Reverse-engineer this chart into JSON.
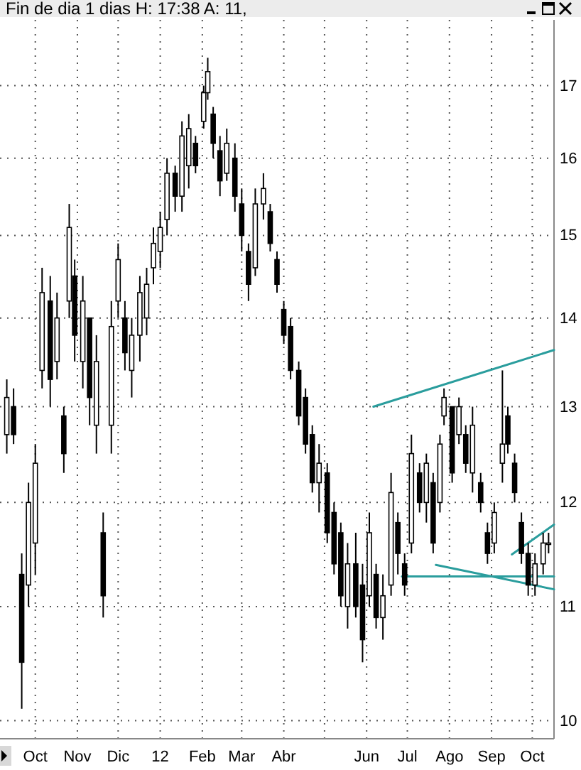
{
  "chart_data": {
    "type": "candlestick",
    "title": "Fin de dia 1 dias H: 17:38 A: 11,",
    "x": [
      "2011-09-10",
      "2011-09-15",
      "2011-09-21",
      "2011-09-26",
      "2011-10-01",
      "2011-10-06",
      "2011-10-12",
      "2011-10-17",
      "2011-10-22",
      "2011-10-26",
      "2011-10-30",
      "2011-11-05",
      "2011-11-10",
      "2011-11-15",
      "2011-11-20",
      "2011-11-26",
      "2011-12-01",
      "2011-12-06",
      "2011-12-11",
      "2011-12-17",
      "2011-12-22",
      "2011-12-27",
      "2012-01-01",
      "2012-01-06",
      "2012-01-12",
      "2012-01-17",
      "2012-01-22",
      "2012-01-27",
      "2012-02-02",
      "2012-02-05",
      "2012-02-09",
      "2012-02-14",
      "2012-02-19",
      "2012-02-25",
      "2012-03-01",
      "2012-03-06",
      "2012-03-11",
      "2012-03-17",
      "2012-03-22",
      "2012-03-27",
      "2012-04-01",
      "2012-04-06",
      "2012-04-12",
      "2012-04-17",
      "2012-04-22",
      "2012-04-27",
      "2012-05-03",
      "2012-05-08",
      "2012-05-13",
      "2012-05-18",
      "2012-05-24",
      "2012-05-29",
      "2012-06-03",
      "2012-06-08",
      "2012-06-13",
      "2012-06-19",
      "2012-06-24",
      "2012-06-29",
      "2012-07-04",
      "2012-07-10",
      "2012-07-15",
      "2012-07-20",
      "2012-07-25",
      "2012-07-28",
      "2012-08-03",
      "2012-08-08",
      "2012-08-13",
      "2012-08-18",
      "2012-08-24",
      "2012-08-29",
      "2012-09-03",
      "2012-09-09",
      "2012-09-13",
      "2012-09-18",
      "2012-09-23",
      "2012-09-28",
      "2012-10-03",
      "2012-10-09",
      "2012-10-13"
    ],
    "ohlc": [
      [
        12.7,
        13.3,
        12.5,
        13.1
      ],
      [
        13.0,
        13.2,
        12.6,
        12.7
      ],
      [
        11.3,
        11.5,
        10.1,
        10.5
      ],
      [
        11.2,
        12.2,
        11.0,
        12.0
      ],
      [
        11.6,
        12.6,
        11.3,
        12.4
      ],
      [
        13.4,
        14.6,
        13.2,
        14.3
      ],
      [
        14.2,
        14.5,
        13.0,
        13.3
      ],
      [
        13.5,
        14.3,
        13.3,
        14.0
      ],
      [
        12.9,
        13.0,
        12.3,
        12.5
      ],
      [
        14.2,
        15.4,
        14.0,
        15.1
      ],
      [
        14.5,
        14.7,
        13.5,
        13.8
      ],
      [
        13.5,
        14.5,
        13.2,
        14.2
      ],
      [
        14.0,
        14.0,
        12.8,
        13.1
      ],
      [
        12.8,
        13.8,
        12.5,
        13.5
      ],
      [
        11.7,
        11.9,
        10.9,
        11.1
      ],
      [
        12.8,
        14.2,
        12.5,
        13.9
      ],
      [
        14.2,
        14.9,
        14.0,
        14.7
      ],
      [
        14.0,
        14.2,
        13.4,
        13.6
      ],
      [
        13.4,
        14.0,
        13.1,
        13.8
      ],
      [
        13.8,
        14.5,
        13.5,
        14.3
      ],
      [
        14.0,
        14.6,
        13.8,
        14.4
      ],
      [
        14.6,
        15.1,
        14.4,
        14.9
      ],
      [
        14.8,
        15.3,
        14.6,
        15.1
      ],
      [
        15.2,
        16.0,
        15.0,
        15.8
      ],
      [
        15.8,
        15.9,
        15.3,
        15.5
      ],
      [
        15.5,
        16.5,
        15.3,
        16.3
      ],
      [
        15.9,
        16.6,
        15.6,
        16.4
      ],
      [
        16.2,
        16.3,
        15.8,
        15.9
      ],
      [
        16.5,
        17.0,
        16.4,
        16.9
      ],
      [
        16.9,
        17.4,
        16.8,
        17.2
      ],
      [
        16.6,
        16.7,
        16.0,
        16.2
      ],
      [
        16.1,
        16.3,
        15.5,
        15.7
      ],
      [
        15.8,
        16.4,
        15.7,
        16.2
      ],
      [
        16.0,
        16.2,
        15.3,
        15.5
      ],
      [
        15.4,
        15.6,
        14.8,
        15.0
      ],
      [
        14.8,
        14.9,
        14.2,
        14.4
      ],
      [
        14.6,
        15.6,
        14.5,
        15.4
      ],
      [
        15.4,
        15.8,
        15.2,
        15.6
      ],
      [
        15.3,
        15.4,
        14.8,
        14.9
      ],
      [
        14.7,
        14.8,
        14.3,
        14.4
      ],
      [
        14.1,
        14.2,
        13.7,
        13.8
      ],
      [
        13.9,
        14.0,
        13.3,
        13.4
      ],
      [
        13.4,
        13.5,
        12.8,
        12.9
      ],
      [
        13.1,
        13.2,
        12.5,
        12.6
      ],
      [
        12.7,
        12.8,
        12.1,
        12.2
      ],
      [
        12.2,
        12.6,
        11.9,
        12.4
      ],
      [
        12.3,
        12.4,
        11.6,
        11.7
      ],
      [
        11.9,
        12.0,
        11.3,
        11.4
      ],
      [
        11.7,
        11.8,
        11.0,
        11.1
      ],
      [
        11.0,
        11.6,
        10.8,
        11.4
      ],
      [
        11.4,
        11.7,
        10.9,
        11.0
      ],
      [
        11.2,
        11.4,
        10.5,
        10.7
      ],
      [
        11.1,
        11.9,
        11.0,
        11.7
      ],
      [
        11.3,
        11.4,
        10.8,
        10.9
      ],
      [
        10.9,
        11.3,
        10.7,
        11.1
      ],
      [
        11.2,
        12.3,
        11.1,
        12.1
      ],
      [
        11.8,
        11.9,
        11.3,
        11.5
      ],
      [
        11.4,
        11.5,
        11.1,
        11.2
      ],
      [
        11.6,
        12.7,
        11.5,
        12.5
      ],
      [
        12.3,
        12.4,
        11.9,
        12.0
      ],
      [
        12.0,
        12.5,
        11.8,
        12.4
      ],
      [
        12.2,
        12.3,
        11.5,
        11.6
      ],
      [
        12.0,
        12.7,
        11.9,
        12.6
      ],
      [
        12.9,
        13.2,
        12.8,
        13.1
      ],
      [
        13.0,
        13.0,
        12.2,
        12.3
      ],
      [
        12.7,
        13.1,
        12.6,
        13.0
      ],
      [
        12.7,
        12.8,
        12.3,
        12.4
      ],
      [
        12.3,
        13.0,
        12.1,
        12.8
      ],
      [
        12.2,
        12.3,
        11.9,
        12.0
      ],
      [
        11.7,
        11.8,
        11.4,
        11.5
      ],
      [
        11.6,
        12.0,
        11.5,
        11.9
      ],
      [
        12.4,
        13.4,
        12.2,
        12.6
      ],
      [
        12.9,
        13.0,
        12.5,
        12.6
      ],
      [
        12.4,
        12.5,
        12.0,
        12.1
      ],
      [
        11.8,
        11.9,
        11.4,
        11.5
      ],
      [
        11.5,
        11.6,
        11.1,
        11.2
      ],
      [
        11.2,
        11.5,
        11.1,
        11.4
      ],
      [
        11.4,
        11.7,
        11.3,
        11.6
      ],
      [
        11.6,
        11.7,
        11.5,
        11.6
      ]
    ],
    "series": [
      {
        "type": "line",
        "color": "#2a9d9d",
        "x": [
          "2012-06-06",
          "2012-10-17"
        ],
        "values": [
          13.0,
          13.63
        ]
      },
      {
        "type": "line",
        "color": "#2a9d9d",
        "x": [
          "2012-07-22",
          "2012-10-17"
        ],
        "values": [
          11.39,
          11.16
        ]
      },
      {
        "type": "line",
        "color": "#2a9d9d",
        "x": [
          "2012-06-27",
          "2012-10-17"
        ],
        "values": [
          11.28,
          11.28
        ]
      },
      {
        "type": "line",
        "color": "#2a9d9d",
        "x": [
          "2012-09-16",
          "2012-10-17"
        ],
        "values": [
          11.49,
          11.78
        ]
      }
    ],
    "xlim": [
      "2011-09-05",
      "2012-10-17"
    ],
    "xticks": [
      {
        "value": "2011-10-01",
        "label": "Oct"
      },
      {
        "value": "2011-11-01",
        "label": "Nov"
      },
      {
        "value": "2011-12-01",
        "label": "Dic"
      },
      {
        "value": "2012-01-01",
        "label": "12"
      },
      {
        "value": "2012-02-01",
        "label": "Feb"
      },
      {
        "value": "2012-03-01",
        "label": "Mar"
      },
      {
        "value": "2012-04-01",
        "label": "Abr"
      },
      {
        "value": "2012-05-01",
        "label": null
      },
      {
        "value": "2012-06-01",
        "label": "Jun"
      },
      {
        "value": "2012-07-01",
        "label": "Jul"
      },
      {
        "value": "2012-08-01",
        "label": "Ago"
      },
      {
        "value": "2012-09-01",
        "label": "Sep"
      },
      {
        "value": "2012-10-01",
        "label": "Oct"
      }
    ],
    "ylim": [
      9.85,
      17.96
    ],
    "yticks": [
      10,
      11,
      12,
      13,
      14,
      15,
      16,
      17
    ],
    "log": true,
    "grid": true
  }
}
